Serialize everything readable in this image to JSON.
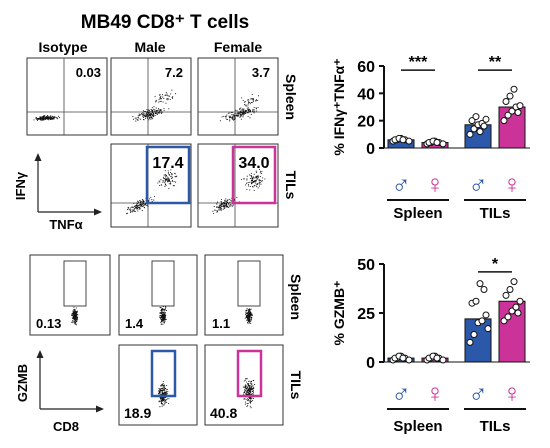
{
  "title": "MB49 CD8⁺ T cells",
  "colors": {
    "male": "#2b58a8",
    "female": "#cc3399",
    "gate": "#222222",
    "dots": "#111111"
  },
  "flow_ifn": {
    "col_headers": [
      "Isotype",
      "Male",
      "Female"
    ],
    "row_labels": [
      "Spleen",
      "TILs"
    ],
    "percentages": {
      "spleen": [
        "0.03",
        "7.2",
        "3.7"
      ],
      "tils": [
        "17.4",
        "34.0"
      ]
    },
    "y_axis": "IFNγ",
    "x_axis": "TNFα"
  },
  "flow_gzmb": {
    "row_labels": [
      "Spleen",
      "TILs"
    ],
    "percentages": {
      "spleen": [
        "0.13",
        "1.4",
        "1.1"
      ],
      "tils": [
        "18.9",
        "40.8"
      ]
    },
    "y_axis": "GZMB",
    "x_axis": "CD8"
  },
  "chart_data": [
    {
      "type": "bar",
      "ylabel": "% IFNγ⁺TNFα⁺",
      "ylim": [
        0,
        60
      ],
      "yticks": [
        "0",
        "20",
        "40",
        "60"
      ],
      "groups": [
        "Spleen",
        "TILs"
      ],
      "sex_symbols": [
        "♂",
        "♀",
        "♂",
        "♀"
      ],
      "bars": [
        {
          "group": "Spleen",
          "sex": "male",
          "value": 6,
          "points": [
            5,
            6,
            7,
            6,
            5,
            6,
            7,
            6
          ]
        },
        {
          "group": "Spleen",
          "sex": "female",
          "value": 4,
          "points": [
            3,
            4,
            5,
            4,
            3,
            4,
            5,
            4
          ]
        },
        {
          "group": "TILs",
          "sex": "male",
          "value": 17,
          "points": [
            10,
            14,
            17,
            18,
            21,
            20,
            23,
            12,
            16
          ]
        },
        {
          "group": "TILs",
          "sex": "female",
          "value": 30,
          "points": [
            20,
            24,
            27,
            30,
            31,
            34,
            38,
            43,
            26
          ]
        }
      ],
      "significance": [
        {
          "group": "Spleen",
          "label": "***",
          "at": 57
        },
        {
          "group": "TILs",
          "label": "**",
          "at": 57
        }
      ]
    },
    {
      "type": "bar",
      "ylabel": "% GZMB⁺",
      "ylim": [
        0,
        50
      ],
      "yticks": [
        "0",
        "25",
        "50"
      ],
      "groups": [
        "Spleen",
        "TILs"
      ],
      "sex_symbols": [
        "♂",
        "♀",
        "♂",
        "♀"
      ],
      "bars": [
        {
          "group": "Spleen",
          "sex": "male",
          "value": 2,
          "points": [
            1,
            2,
            3,
            2,
            1,
            2,
            3,
            2
          ]
        },
        {
          "group": "Spleen",
          "sex": "female",
          "value": 2,
          "points": [
            1,
            2,
            3,
            2,
            1,
            2,
            3,
            2
          ]
        },
        {
          "group": "TILs",
          "sex": "male",
          "value": 22,
          "points": [
            10,
            14,
            20,
            21,
            24,
            30,
            31,
            40,
            37,
            17
          ]
        },
        {
          "group": "TILs",
          "sex": "female",
          "value": 31,
          "points": [
            21,
            23,
            26,
            28,
            31,
            34,
            37,
            41,
            25
          ]
        }
      ],
      "significance": [
        {
          "group": "TILs",
          "label": "*",
          "at": 46
        }
      ]
    }
  ]
}
